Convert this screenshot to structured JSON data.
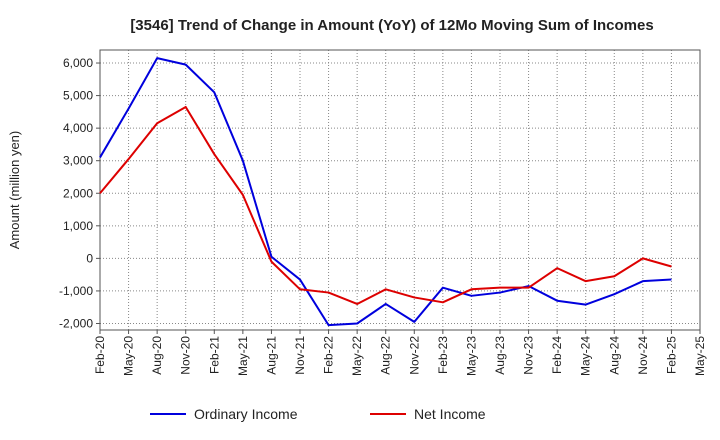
{
  "chart_data": {
    "type": "line",
    "title": "[3546]  Trend of Change in Amount (YoY) of 12Mo Moving Sum of Incomes",
    "ylabel": "Amount (million yen)",
    "xlabel": "",
    "ylim": [
      -2200,
      6400
    ],
    "yticks": [
      6000,
      5000,
      4000,
      3000,
      2000,
      1000,
      0,
      -1000,
      -2000
    ],
    "ytick_labels": [
      "6,000",
      "5,000",
      "4,000",
      "3,000",
      "2,000",
      "1,000",
      "0",
      "-1,000",
      "-2,000"
    ],
    "x": [
      "Feb-20",
      "May-20",
      "Aug-20",
      "Nov-20",
      "Feb-21",
      "May-21",
      "Aug-21",
      "Nov-21",
      "Feb-22",
      "May-22",
      "Aug-22",
      "Nov-22",
      "Feb-23",
      "May-23",
      "Aug-23",
      "Nov-23",
      "Feb-24",
      "May-24",
      "Aug-24",
      "Nov-24",
      "Feb-25",
      "May-25"
    ],
    "grid": true,
    "legend_position": "bottom",
    "series": [
      {
        "name": "Ordinary Income",
        "color": "#0000dd",
        "values": [
          3100,
          4600,
          6150,
          5950,
          5100,
          3000,
          50,
          -650,
          -2050,
          -2000,
          -1400,
          -1950,
          -900,
          -1150,
          -1050,
          -850,
          -1300,
          -1420,
          -1100,
          -700,
          -650,
          null
        ]
      },
      {
        "name": "Net Income",
        "color": "#dd0000",
        "values": [
          2000,
          3050,
          4150,
          4650,
          3200,
          1950,
          -100,
          -950,
          -1050,
          -1400,
          -950,
          -1200,
          -1350,
          -950,
          -900,
          -900,
          -300,
          -700,
          -550,
          0,
          -250,
          null
        ]
      }
    ]
  }
}
